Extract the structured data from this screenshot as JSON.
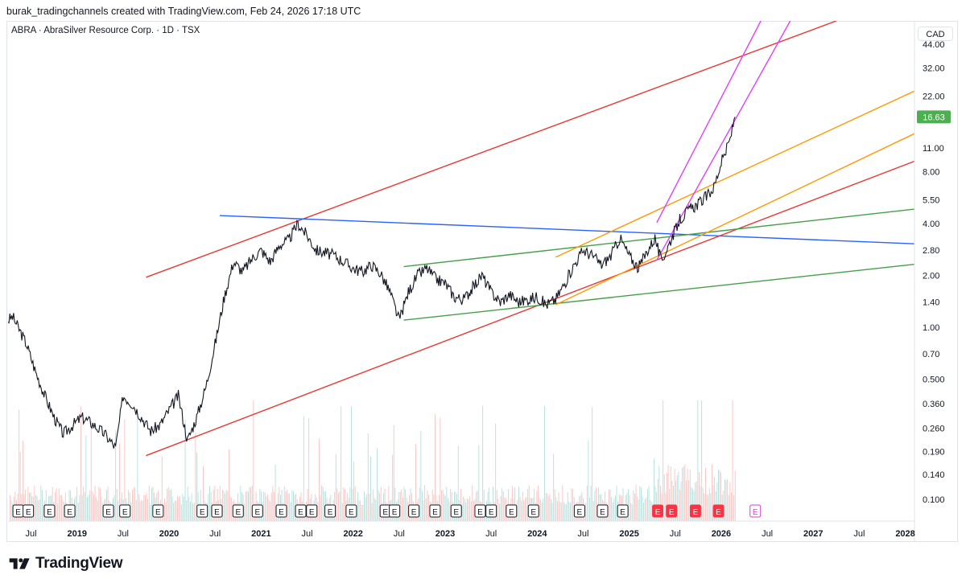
{
  "header": {
    "credit": "burak_tradingchannels created with TradingView.com, Feb 24, 2026 17:18 UTC"
  },
  "chart_title": "ABRA · AbraSilver Resource Corp. · 1D · TSX",
  "currency": "CAD",
  "logo_text": "TradingView",
  "colors": {
    "red_channel": "#e53935",
    "blue_line": "#2962ff",
    "green_lines": "#43a047",
    "orange_lines": "#ff9800",
    "magenta_channel": "#e040fb",
    "price_badge": "#4caf50",
    "earnings_red": "#f23645",
    "earnings_future": "#d040d0"
  },
  "chart_data": {
    "type": "line",
    "title": "ABRA · AbraSilver Resource Corp. · 1D · TSX",
    "y_scale": "log",
    "ylim": [
      0.075,
      60
    ],
    "y_ticks": [
      "44.00",
      "32.00",
      "22.00",
      "11.00",
      "8.00",
      "5.50",
      "4.00",
      "2.80",
      "2.00",
      "1.40",
      "1.00",
      "0.70",
      "0.500",
      "0.360",
      "0.260",
      "0.190",
      "0.140",
      "0.100"
    ],
    "y_tick_values": [
      44,
      32,
      22,
      11,
      8,
      5.5,
      4,
      2.8,
      2,
      1.4,
      1,
      0.7,
      0.5,
      0.36,
      0.26,
      0.19,
      0.14,
      0.1
    ],
    "last_price": "16.63",
    "last_price_value": 16.63,
    "x_range": [
      2018.25,
      2028.1
    ],
    "x_ticks": [
      {
        "label": "Jul",
        "t": 2018.5
      },
      {
        "label": "2019",
        "t": 2019.0,
        "year": true
      },
      {
        "label": "Jul",
        "t": 2019.5
      },
      {
        "label": "2020",
        "t": 2020.0,
        "year": true
      },
      {
        "label": "Jul",
        "t": 2020.5
      },
      {
        "label": "2021",
        "t": 2021.0,
        "year": true
      },
      {
        "label": "Jul",
        "t": 2021.5
      },
      {
        "label": "2022",
        "t": 2022.0,
        "year": true
      },
      {
        "label": "Jul",
        "t": 2022.5
      },
      {
        "label": "2023",
        "t": 2023.0,
        "year": true
      },
      {
        "label": "Jul",
        "t": 2023.5
      },
      {
        "label": "2024",
        "t": 2024.0,
        "year": true
      },
      {
        "label": "Jul",
        "t": 2024.5
      },
      {
        "label": "2025",
        "t": 2025.0,
        "year": true
      },
      {
        "label": "Jul",
        "t": 2025.5
      },
      {
        "label": "2026",
        "t": 2026.0,
        "year": true
      },
      {
        "label": "Jul",
        "t": 2026.5
      },
      {
        "label": "2027",
        "t": 2027.0,
        "year": true
      },
      {
        "label": "Jul",
        "t": 2027.5
      },
      {
        "label": "2028",
        "t": 2028.0,
        "year": true
      }
    ],
    "price_series": {
      "name": "ABRA",
      "points": [
        [
          2018.25,
          1.1
        ],
        [
          2018.3,
          1.15
        ],
        [
          2018.38,
          0.95
        ],
        [
          2018.45,
          0.8
        ],
        [
          2018.55,
          0.55
        ],
        [
          2018.65,
          0.4
        ],
        [
          2018.75,
          0.3
        ],
        [
          2018.85,
          0.24
        ],
        [
          2018.95,
          0.27
        ],
        [
          2019.05,
          0.3
        ],
        [
          2019.15,
          0.28
        ],
        [
          2019.3,
          0.24
        ],
        [
          2019.42,
          0.2
        ],
        [
          2019.5,
          0.4
        ],
        [
          2019.6,
          0.36
        ],
        [
          2019.7,
          0.3
        ],
        [
          2019.8,
          0.25
        ],
        [
          2019.9,
          0.27
        ],
        [
          2020.0,
          0.33
        ],
        [
          2020.1,
          0.4
        ],
        [
          2020.2,
          0.22
        ],
        [
          2020.3,
          0.3
        ],
        [
          2020.4,
          0.45
        ],
        [
          2020.5,
          0.8
        ],
        [
          2020.6,
          1.5
        ],
        [
          2020.7,
          2.4
        ],
        [
          2020.8,
          2.1
        ],
        [
          2020.9,
          2.5
        ],
        [
          2021.0,
          2.8
        ],
        [
          2021.1,
          2.4
        ],
        [
          2021.2,
          3.0
        ],
        [
          2021.3,
          3.2
        ],
        [
          2021.4,
          4.0
        ],
        [
          2021.5,
          3.4
        ],
        [
          2021.6,
          2.8
        ],
        [
          2021.7,
          2.7
        ],
        [
          2021.8,
          2.6
        ],
        [
          2021.9,
          2.4
        ],
        [
          2022.0,
          2.2
        ],
        [
          2022.1,
          2.1
        ],
        [
          2022.2,
          2.3
        ],
        [
          2022.3,
          2.05
        ],
        [
          2022.4,
          1.6
        ],
        [
          2022.5,
          1.1
        ],
        [
          2022.6,
          1.6
        ],
        [
          2022.7,
          2.0
        ],
        [
          2022.8,
          2.2
        ],
        [
          2022.9,
          1.9
        ],
        [
          2023.0,
          1.8
        ],
        [
          2023.1,
          1.5
        ],
        [
          2023.2,
          1.45
        ],
        [
          2023.3,
          1.7
        ],
        [
          2023.4,
          2.0
        ],
        [
          2023.5,
          1.6
        ],
        [
          2023.6,
          1.4
        ],
        [
          2023.7,
          1.55
        ],
        [
          2023.8,
          1.4
        ],
        [
          2023.9,
          1.45
        ],
        [
          2024.0,
          1.5
        ],
        [
          2024.1,
          1.35
        ],
        [
          2024.2,
          1.45
        ],
        [
          2024.3,
          1.8
        ],
        [
          2024.4,
          2.3
        ],
        [
          2024.5,
          2.8
        ],
        [
          2024.6,
          2.6
        ],
        [
          2024.7,
          2.3
        ],
        [
          2024.8,
          2.6
        ],
        [
          2024.9,
          3.3
        ],
        [
          2025.0,
          2.6
        ],
        [
          2025.1,
          2.2
        ],
        [
          2025.2,
          2.8
        ],
        [
          2025.28,
          3.3
        ],
        [
          2025.35,
          2.4
        ],
        [
          2025.45,
          3.2
        ],
        [
          2025.55,
          4.2
        ],
        [
          2025.65,
          4.8
        ],
        [
          2025.75,
          5.2
        ],
        [
          2025.85,
          5.8
        ],
        [
          2025.92,
          6.5
        ],
        [
          2026.0,
          9.0
        ],
        [
          2026.05,
          10.5
        ],
        [
          2026.1,
          12.5
        ],
        [
          2026.13,
          15.0
        ],
        [
          2026.15,
          16.63
        ]
      ]
    },
    "trend_lines": [
      {
        "name": "red-channel-upper",
        "color": "#e53935",
        "points": [
          [
            2019.75,
            1.95
          ],
          [
            2027.25,
            60
          ]
        ]
      },
      {
        "name": "red-channel-lower",
        "color": "#e53935",
        "points": [
          [
            2019.75,
            0.18
          ],
          [
            2028.1,
            9.2
          ]
        ]
      },
      {
        "name": "blue-resistance",
        "color": "#2962ff",
        "points": [
          [
            2020.55,
            4.45
          ],
          [
            2028.1,
            3.05
          ]
        ]
      },
      {
        "name": "green-upper",
        "color": "#43a047",
        "points": [
          [
            2022.55,
            2.25
          ],
          [
            2028.1,
            4.85
          ]
        ]
      },
      {
        "name": "green-lower",
        "color": "#43a047",
        "points": [
          [
            2022.55,
            1.1
          ],
          [
            2028.1,
            2.32
          ]
        ]
      },
      {
        "name": "orange-upper",
        "color": "#ff9800",
        "points": [
          [
            2024.2,
            2.55
          ],
          [
            2028.1,
            23.5
          ]
        ]
      },
      {
        "name": "orange-lower",
        "color": "#ff9800",
        "points": [
          [
            2024.2,
            1.35
          ],
          [
            2028.1,
            13.3
          ]
        ]
      },
      {
        "name": "magenta-upper",
        "color": "#e040fb",
        "points": [
          [
            2025.3,
            4.05
          ],
          [
            2026.43,
            60
          ]
        ]
      },
      {
        "name": "magenta-lower",
        "color": "#e040fb",
        "points": [
          [
            2025.3,
            2.45
          ],
          [
            2026.75,
            60
          ]
        ]
      }
    ],
    "earnings_events": [
      {
        "t": 2018.36,
        "label": "E",
        "type": "past"
      },
      {
        "t": 2018.47,
        "label": "E",
        "type": "past"
      },
      {
        "t": 2018.7,
        "label": "E",
        "type": "past"
      },
      {
        "t": 2018.92,
        "label": "E",
        "type": "past"
      },
      {
        "t": 2019.34,
        "label": "E",
        "type": "past"
      },
      {
        "t": 2019.52,
        "label": "E",
        "type": "past"
      },
      {
        "t": 2019.88,
        "label": "E",
        "type": "past"
      },
      {
        "t": 2020.36,
        "label": "E",
        "type": "past"
      },
      {
        "t": 2020.52,
        "label": "E",
        "type": "past"
      },
      {
        "t": 2020.75,
        "label": "E",
        "type": "past"
      },
      {
        "t": 2020.96,
        "label": "E",
        "type": "past"
      },
      {
        "t": 2021.22,
        "label": "E",
        "type": "past"
      },
      {
        "t": 2021.43,
        "label": "E",
        "type": "past"
      },
      {
        "t": 2021.55,
        "label": "E",
        "type": "past"
      },
      {
        "t": 2021.75,
        "label": "E",
        "type": "past"
      },
      {
        "t": 2021.98,
        "label": "E",
        "type": "past"
      },
      {
        "t": 2022.35,
        "label": "E",
        "type": "past"
      },
      {
        "t": 2022.45,
        "label": "E",
        "type": "past"
      },
      {
        "t": 2022.66,
        "label": "E",
        "type": "past"
      },
      {
        "t": 2022.89,
        "label": "E",
        "type": "past"
      },
      {
        "t": 2023.12,
        "label": "E",
        "type": "past"
      },
      {
        "t": 2023.38,
        "label": "E",
        "type": "past"
      },
      {
        "t": 2023.5,
        "label": "E",
        "type": "past"
      },
      {
        "t": 2023.72,
        "label": "E",
        "type": "past"
      },
      {
        "t": 2023.96,
        "label": "E",
        "type": "past"
      },
      {
        "t": 2024.46,
        "label": "E",
        "type": "past"
      },
      {
        "t": 2024.71,
        "label": "E",
        "type": "past"
      },
      {
        "t": 2024.93,
        "label": "E",
        "type": "past"
      },
      {
        "t": 2025.31,
        "label": "E",
        "type": "red"
      },
      {
        "t": 2025.46,
        "label": "E",
        "type": "red"
      },
      {
        "t": 2025.72,
        "label": "E",
        "type": "red"
      },
      {
        "t": 2025.97,
        "label": "E",
        "type": "red"
      },
      {
        "t": 2026.37,
        "label": "E",
        "type": "future"
      }
    ]
  }
}
